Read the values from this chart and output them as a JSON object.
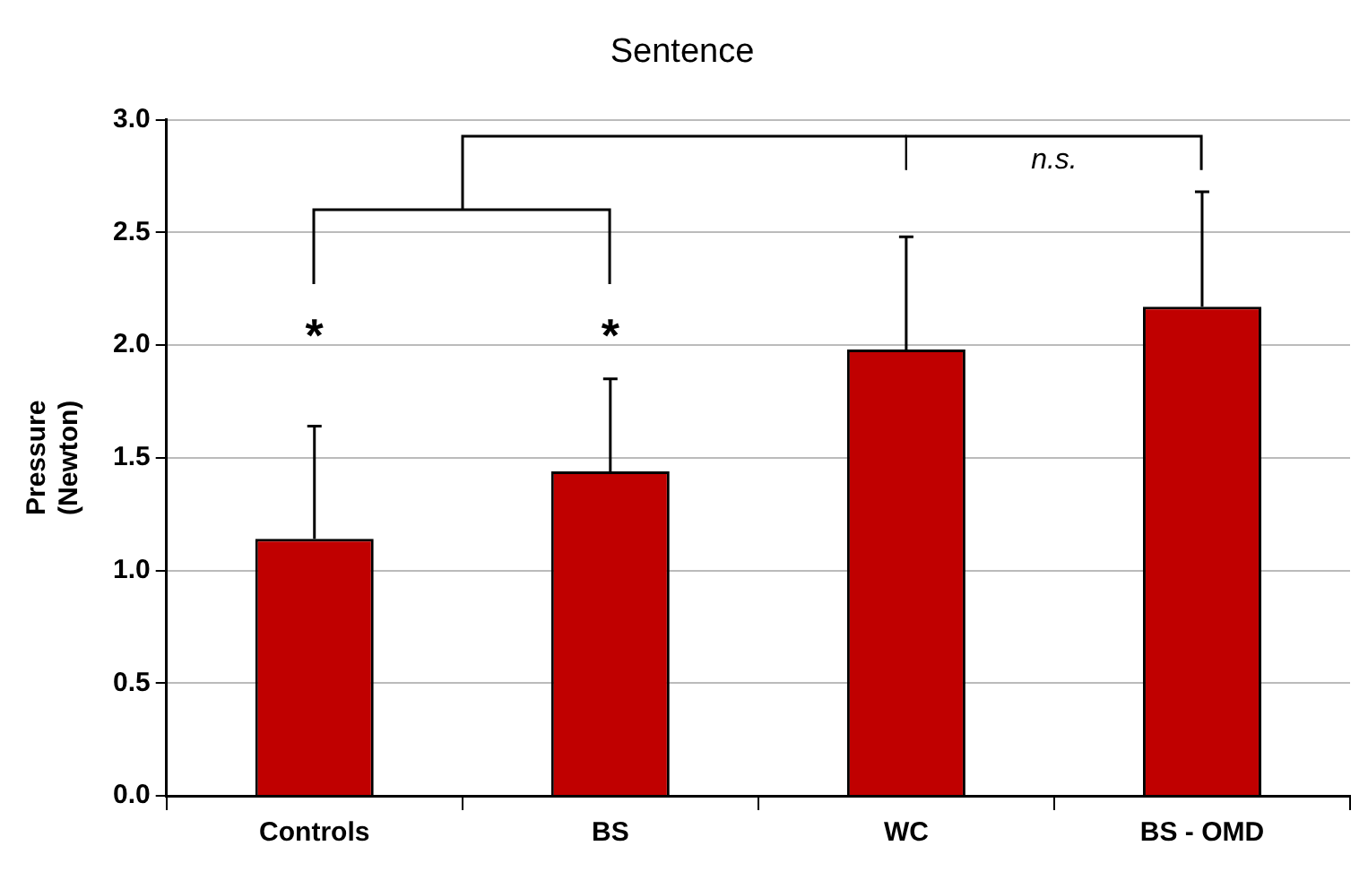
{
  "chart_data": {
    "type": "bar",
    "title": "Sentence",
    "ylabel": "Pressure (Newton)",
    "categories": [
      "Controls",
      "BS",
      "WC",
      "BS - OMD"
    ],
    "values": [
      1.14,
      1.44,
      1.98,
      2.17
    ],
    "color": "#c00000",
    "errors": [
      [
        1.14,
        1.64
      ],
      [
        1.44,
        1.85
      ],
      [
        1.98,
        2.48
      ],
      [
        2.17,
        2.68
      ]
    ],
    "ylim": [
      0,
      3
    ],
    "yticks": [
      {
        "value": 0,
        "label": "0.0"
      },
      {
        "value": 0.5,
        "label": "0.5"
      },
      {
        "value": 1,
        "label": "1.0"
      },
      {
        "value": 1.5,
        "label": "1.5"
      },
      {
        "value": 2,
        "label": "2.0"
      },
      {
        "value": 2.5,
        "label": "2.5"
      },
      {
        "value": 3,
        "label": "3.0"
      }
    ],
    "grid": "y",
    "legend": false,
    "annotations": [
      "*",
      "*",
      "n.s."
    ]
  }
}
